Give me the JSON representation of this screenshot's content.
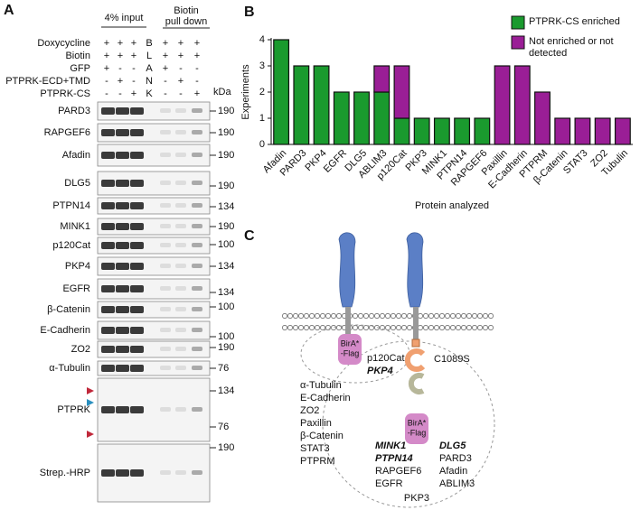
{
  "panel_labels": [
    "A",
    "B",
    "C"
  ],
  "blot": {
    "input_header": "4% input",
    "pulldown_header": [
      "Biotin",
      "pull down"
    ],
    "conditions": [
      {
        "label": "Doxycycline",
        "signs": [
          "+",
          "+",
          "+",
          "B",
          "+",
          "+",
          "+"
        ]
      },
      {
        "label": "Biotin",
        "signs": [
          "+",
          "+",
          "+",
          "L",
          "+",
          "+",
          "+"
        ]
      },
      {
        "label": "GFP",
        "signs": [
          "+",
          "-",
          "-",
          "A",
          "+",
          "-",
          "-"
        ]
      },
      {
        "label": "PTPRK-ECD+TMD",
        "signs": [
          "-",
          "+",
          "-",
          "N",
          "-",
          "+",
          "-"
        ]
      },
      {
        "label": "PTPRK-CS",
        "signs": [
          "-",
          "-",
          "+",
          "K",
          "-",
          "-",
          "+"
        ]
      }
    ],
    "kda": "kDa",
    "rows": [
      {
        "label": "PARD3",
        "markers": [
          "190"
        ]
      },
      {
        "label": "RAPGEF6",
        "markers": [
          "190"
        ]
      },
      {
        "label": "Afadin",
        "markers": [
          "190"
        ]
      },
      {
        "label": "DLG5",
        "markers": [
          "190"
        ]
      },
      {
        "label": "PTPN14",
        "markers": [
          "134"
        ]
      },
      {
        "label": "MINK1",
        "markers": [
          "190"
        ]
      },
      {
        "label": "p120Cat",
        "markers": [
          "100"
        ]
      },
      {
        "label": "PKP4",
        "markers": [
          "134"
        ]
      },
      {
        "label": "EGFR",
        "markers": [
          "134"
        ]
      },
      {
        "label": "β-Catenin",
        "markers": [
          "100"
        ]
      },
      {
        "label": "E-Cadherin",
        "markers": [
          "100"
        ]
      },
      {
        "label": "ZO2",
        "markers": [
          "190"
        ]
      },
      {
        "label": "α-Tubulin",
        "markers": [
          "76"
        ]
      },
      {
        "label": "PTPRK",
        "markers": [
          "134",
          "76"
        ]
      },
      {
        "label": "Strep.-HRP",
        "markers": [
          "190"
        ]
      }
    ]
  },
  "chart_data": {
    "type": "stacked_bar",
    "categories": [
      "Afadin",
      "PARD3",
      "PKP4",
      "EGFR",
      "DLG5",
      "ABLIM3",
      "p120Cat",
      "PKP3",
      "MINK1",
      "PTPN14",
      "RAPGEF6",
      "Paxillin",
      "E-Cadherin",
      "PTPRM",
      "β-Catenin",
      "STAT3",
      "ZO2",
      "Tubulin"
    ],
    "series": [
      {
        "name": "PTPRK-CS enriched",
        "color": "#1a9a2e",
        "values": [
          4,
          3,
          3,
          2,
          2,
          2,
          1,
          1,
          1,
          1,
          1,
          0,
          0,
          0,
          0,
          0,
          0,
          0
        ]
      },
      {
        "name": "Not enriched or not detected",
        "color": "#9a1e96",
        "values": [
          0,
          0,
          0,
          0,
          0,
          1,
          2,
          0,
          0,
          0,
          0,
          3,
          3,
          2,
          1,
          1,
          1,
          1
        ]
      }
    ],
    "y_label": "Experiments",
    "x_label": "Protein analyzed",
    "ylim": [
      0,
      4
    ],
    "yticks": [
      0,
      1,
      2,
      3,
      4
    ],
    "legend": "upper right"
  },
  "diagram": {
    "bira_left": [
      "BirA*",
      "-Flag"
    ],
    "bira_right": [
      "BirA*",
      "-Flag"
    ],
    "p120": "p120Cat",
    "pkp4": "PKP4",
    "mutation": "C1089S",
    "outside_list": [
      "α-Tubulin",
      "E-Cadherin",
      "ZO2",
      "Paxillin",
      "β-Catenin",
      "STAT3",
      "PTPRM"
    ],
    "bold_left": [
      "MINK1",
      "PTPN14"
    ],
    "plain_left": [
      "RAPGEF6",
      "EGFR"
    ],
    "bold_right": [
      "DLG5"
    ],
    "plain_right": [
      "PARD3",
      "Afadin",
      "ABLIM3"
    ],
    "bottom": "PKP3"
  }
}
